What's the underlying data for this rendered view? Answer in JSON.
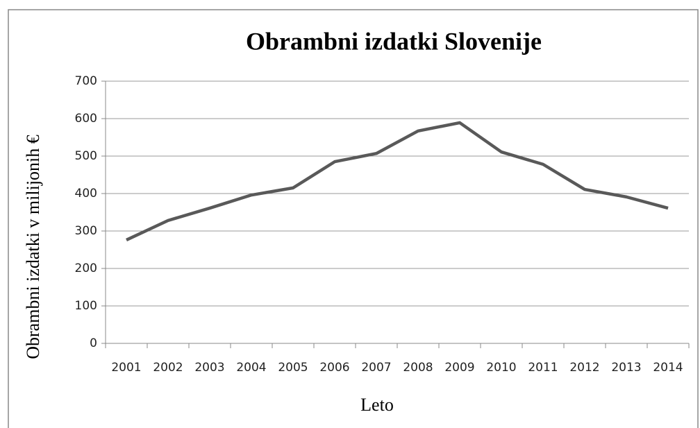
{
  "chart_data": {
    "type": "line",
    "title": "Obrambni izdatki Slovenije",
    "x_label": "Leto",
    "y_label": "Obrambni izdatki v milijonih €",
    "categories": [
      "2001",
      "2002",
      "2003",
      "2004",
      "2005",
      "2006",
      "2007",
      "2008",
      "2009",
      "2010",
      "2011",
      "2012",
      "2013",
      "2014"
    ],
    "series": [
      {
        "color": "#595959",
        "values": [
          276,
          328,
          361,
          396,
          415,
          485,
          507,
          567,
          589,
          511,
          478,
          411,
          391,
          361
        ]
      }
    ],
    "ylim": [
      0,
      700
    ],
    "yticks": [
      0,
      100,
      200,
      300,
      400,
      500,
      600,
      700
    ],
    "grid": true
  }
}
